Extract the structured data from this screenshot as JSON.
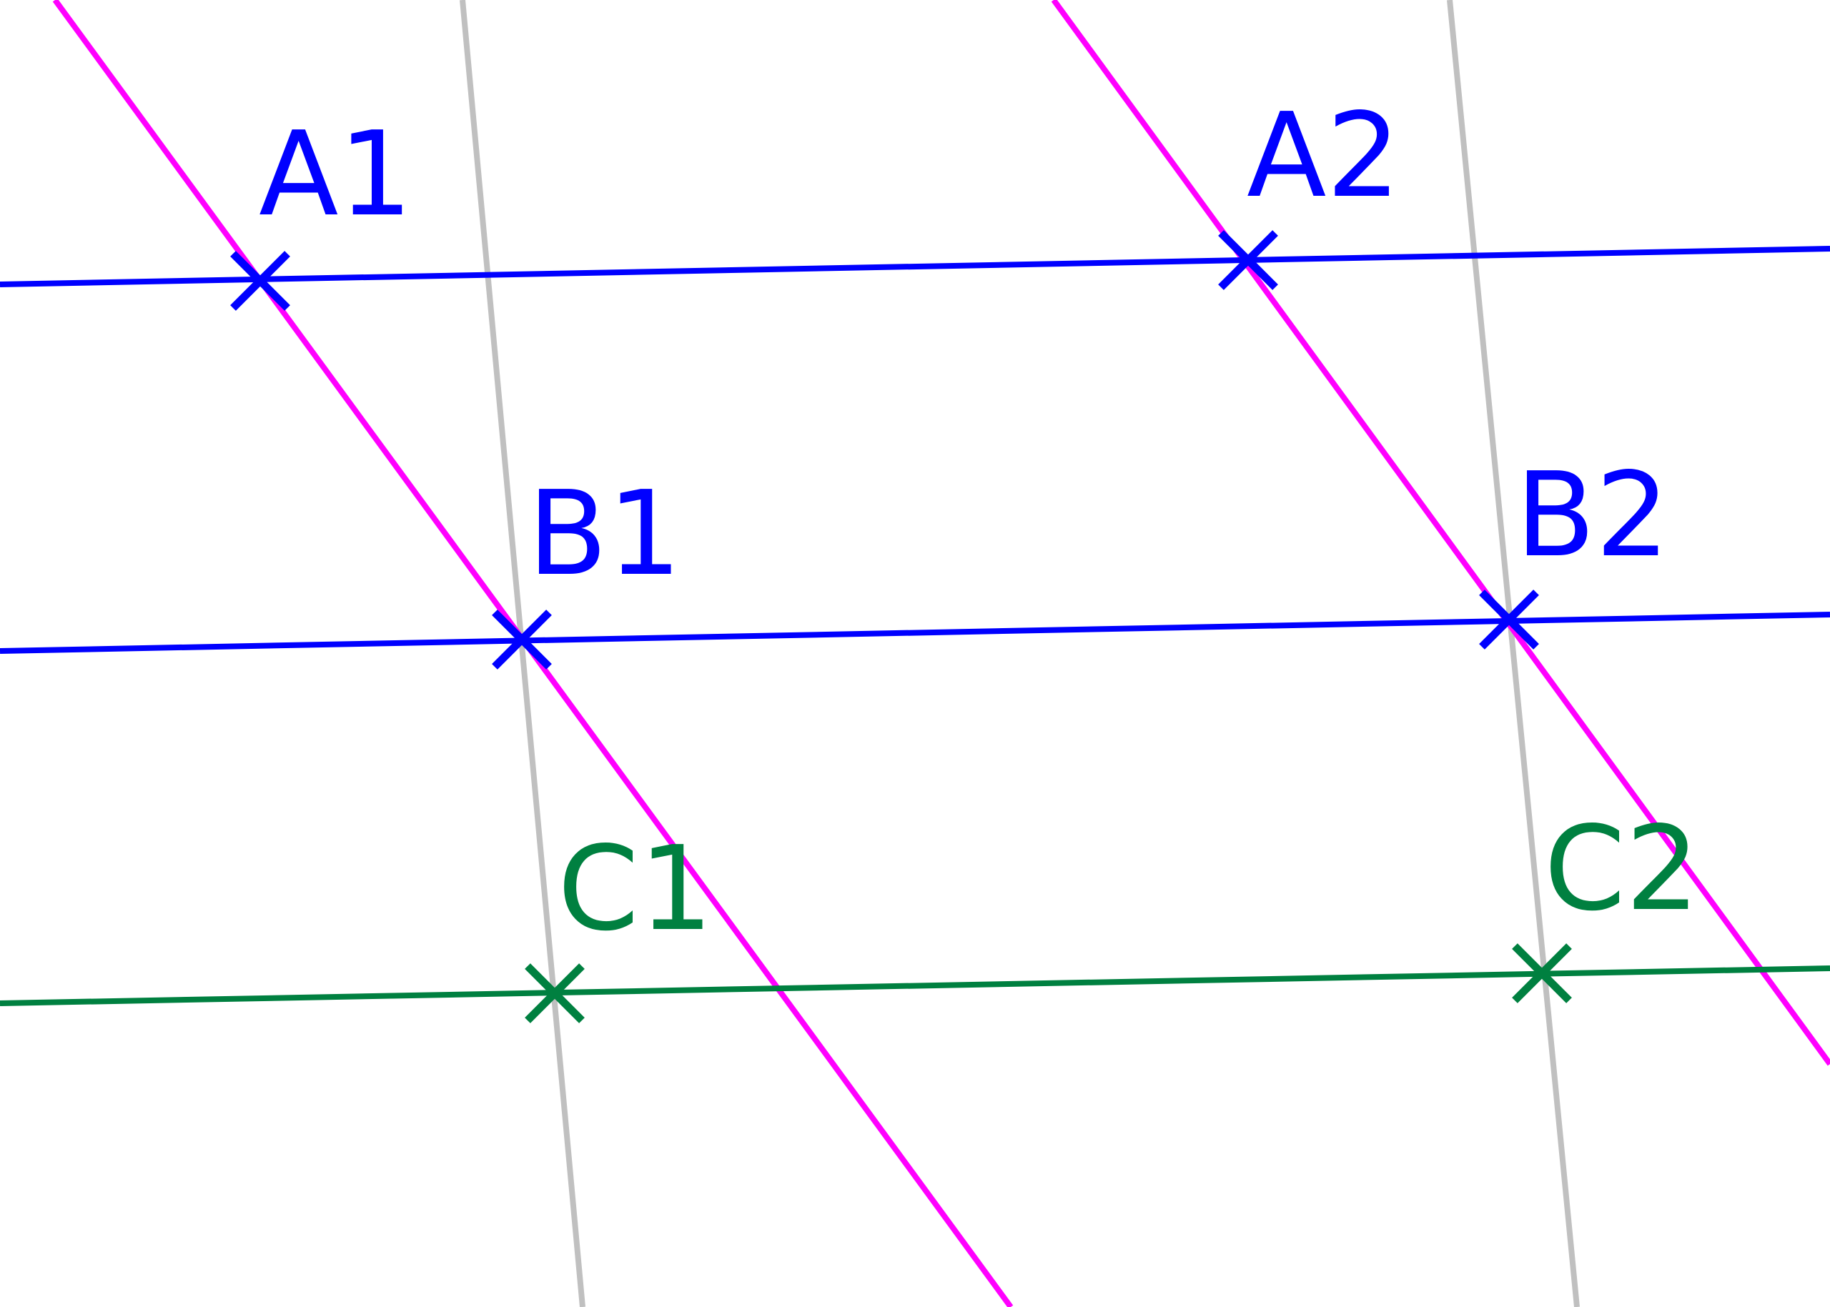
{
  "points": [
    {
      "label": "A1"
    },
    {
      "label": "A2"
    },
    {
      "label": "B1"
    },
    {
      "label": "B2"
    },
    {
      "label": "C1"
    },
    {
      "label": "C2"
    }
  ]
}
